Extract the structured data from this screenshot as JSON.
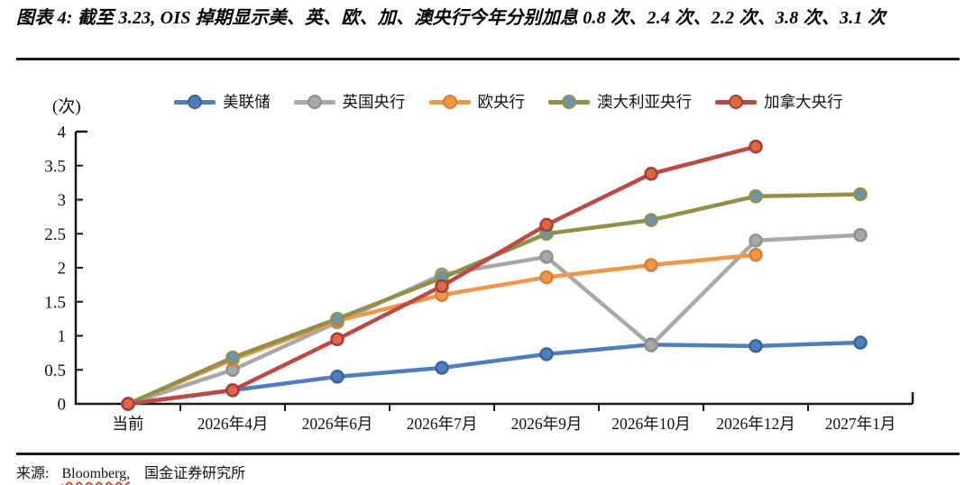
{
  "title": "图表 4: 截至 3.23, OIS 掉期显示美、英、欧、加、澳央行今年分别加息 0.8 次、2.4 次、2.2 次、3.8 次、3.1 次",
  "footer": {
    "source_label": "来源:",
    "source_name": "Bloomberg,",
    "source_org": "国金证券研究所"
  },
  "chart_data": {
    "type": "line",
    "title": "截至 3.23, OIS 掉期显示美、英、欧、加、澳央行今年分别加息 0.8 次、2.4 次、2.2 次、3.8 次、3.1 次",
    "unit_label": "(次)",
    "xlabel": "",
    "ylabel": "(次)",
    "ylim": [
      0,
      4
    ],
    "ytick_step": 0.5,
    "grid": false,
    "legend_position": "top",
    "categories": [
      "当前",
      "2026年4月",
      "2026年6月",
      "2026年7月",
      "2026年9月",
      "2026年10月",
      "2026年12月",
      "2027年1月"
    ],
    "series": [
      {
        "key": "fed",
        "name": "美联储",
        "color": "#4D7EBD",
        "marker_fill": "#4D7EBD",
        "marker_stroke": "#3A6596",
        "values": [
          0,
          0.2,
          0.4,
          0.53,
          0.73,
          0.87,
          0.85,
          0.9
        ]
      },
      {
        "key": "boe",
        "name": "英国央行",
        "color": "#A8A8A8",
        "marker_fill": "#A8A8A8",
        "marker_stroke": "#8F8F8F",
        "values": [
          0,
          0.5,
          1.2,
          1.9,
          2.16,
          0.86,
          2.4,
          2.48
        ]
      },
      {
        "key": "ecb",
        "name": "欧央行",
        "color": "#F0964A",
        "marker_fill": "#F0964A",
        "marker_stroke": "#D97F35",
        "values": [
          0,
          0.65,
          1.22,
          1.6,
          1.86,
          2.04,
          2.19,
          null
        ]
      },
      {
        "key": "rba",
        "name": "澳大利亚央行",
        "color": "#8F9049",
        "marker_fill": "#6E93AE",
        "marker_stroke": "#8F9049",
        "values": [
          0,
          0.68,
          1.25,
          1.85,
          2.5,
          2.7,
          3.05,
          3.08
        ]
      },
      {
        "key": "boc",
        "name": "加拿大央行",
        "color": "#BB4A45",
        "marker_fill": "#DB6840",
        "marker_stroke": "#A83C38",
        "values": [
          0,
          0.2,
          0.95,
          1.73,
          2.63,
          3.38,
          3.78,
          null
        ]
      }
    ]
  }
}
